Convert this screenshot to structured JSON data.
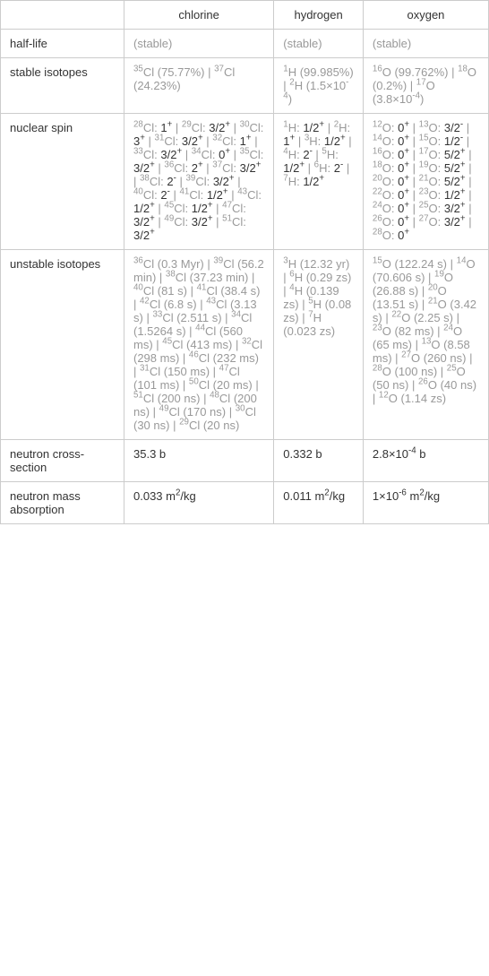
{
  "columns": [
    "chlorine",
    "hydrogen",
    "oxygen"
  ],
  "rows": {
    "halflife": {
      "label": "half-life",
      "cells": [
        "(stable)",
        "(stable)",
        "(stable)"
      ]
    },
    "stable_isotopes": {
      "label": "stable isotopes",
      "cells_html": [
        "<sup>35</sup>Cl (75.77%) | <sup>37</sup>Cl (24.23%)",
        "<sup>1</sup>H (99.985%) | <sup>2</sup>H (1.5×10<sup>-4</sup>)",
        "<sup>16</sup>O (99.762%) | <sup>18</sup>O (0.2%) | <sup>17</sup>O (3.8×10<sup>-4</sup>)"
      ]
    },
    "nuclear_spin": {
      "label": "nuclear spin",
      "cells_html": [
        "<sup>28</sup>Cl: <span class='black'>1<sup>+</sup></span> | <sup>29</sup>Cl: <span class='black'>3/2<sup>+</sup></span> | <sup>30</sup>Cl: <span class='black'>3<sup>+</sup></span> | <sup>31</sup>Cl: <span class='black'>3/2<sup>+</sup></span> | <sup>32</sup>Cl: <span class='black'>1<sup>+</sup></span> | <sup>33</sup>Cl: <span class='black'>3/2<sup>+</sup></span> | <sup>34</sup>Cl: <span class='black'>0<sup>+</sup></span> | <sup>35</sup>Cl: <span class='black'>3/2<sup>+</sup></span> | <sup>36</sup>Cl: <span class='black'>2<sup>+</sup></span> | <sup>37</sup>Cl: <span class='black'>3/2<sup>+</sup></span> | <sup>38</sup>Cl: <span class='black'>2<sup>-</sup></span> | <sup>39</sup>Cl: <span class='black'>3/2<sup>+</sup></span> | <sup>40</sup>Cl: <span class='black'>2<sup>-</sup></span> | <sup>41</sup>Cl: <span class='black'>1/2<sup>+</sup></span> | <sup>43</sup>Cl: <span class='black'>1/2<sup>+</sup></span> | <sup>45</sup>Cl: <span class='black'>1/2<sup>+</sup></span> | <sup>47</sup>Cl: <span class='black'>3/2<sup>+</sup></span> | <sup>49</sup>Cl: <span class='black'>3/2<sup>+</sup></span> | <sup>51</sup>Cl: <span class='black'>3/2<sup>+</sup></span>",
        "<sup>1</sup>H: <span class='black'>1/2<sup>+</sup></span> | <sup>2</sup>H: <span class='black'>1<sup>+</sup></span> | <sup>3</sup>H: <span class='black'>1/2<sup>+</sup></span> | <sup>4</sup>H: <span class='black'>2<sup>-</sup></span> | <sup>5</sup>H: <span class='black'>1/2<sup>+</sup></span> | <sup>6</sup>H: <span class='black'>2<sup>-</sup></span> | <sup>7</sup>H: <span class='black'>1/2<sup>+</sup></span>",
        "<sup>12</sup>O: <span class='black'>0<sup>+</sup></span> | <sup>13</sup>O: <span class='black'>3/2<sup>-</sup></span> | <sup>14</sup>O: <span class='black'>0<sup>+</sup></span> | <sup>15</sup>O: <span class='black'>1/2<sup>-</sup></span> | <sup>16</sup>O: <span class='black'>0<sup>+</sup></span> | <sup>17</sup>O: <span class='black'>5/2<sup>+</sup></span> | <sup>18</sup>O: <span class='black'>0<sup>+</sup></span> | <sup>19</sup>O: <span class='black'>5/2<sup>+</sup></span> | <sup>20</sup>O: <span class='black'>0<sup>+</sup></span> | <sup>21</sup>O: <span class='black'>5/2<sup>+</sup></span> | <sup>22</sup>O: <span class='black'>0<sup>+</sup></span> | <sup>23</sup>O: <span class='black'>1/2<sup>+</sup></span> | <sup>24</sup>O: <span class='black'>0<sup>+</sup></span> | <sup>25</sup>O: <span class='black'>3/2<sup>+</sup></span> | <sup>26</sup>O: <span class='black'>0<sup>+</sup></span> | <sup>27</sup>O: <span class='black'>3/2<sup>+</sup></span> | <sup>28</sup>O: <span class='black'>0<sup>+</sup></span>"
      ]
    },
    "unstable_isotopes": {
      "label": "unstable isotopes",
      "cells_html": [
        "<sup>36</sup>Cl <span class='gray'>(0.3 Myr)</span> | <sup>39</sup>Cl <span class='gray'>(56.2 min)</span> | <sup>38</sup>Cl <span class='gray'>(37.23 min)</span> | <sup>40</sup>Cl <span class='gray'>(81 s)</span> | <sup>41</sup>Cl <span class='gray'>(38.4 s)</span> | <sup>42</sup>Cl <span class='gray'>(6.8 s)</span> | <sup>43</sup>Cl <span class='gray'>(3.13 s)</span> | <sup>33</sup>Cl <span class='gray'>(2.511 s)</span> | <sup>34</sup>Cl <span class='gray'>(1.5264 s)</span> | <sup>44</sup>Cl <span class='gray'>(560 ms)</span> | <sup>45</sup>Cl <span class='gray'>(413 ms)</span> | <sup>32</sup>Cl <span class='gray'>(298 ms)</span> | <sup>46</sup>Cl <span class='gray'>(232 ms)</span> | <sup>31</sup>Cl <span class='gray'>(150 ms)</span> | <sup>47</sup>Cl <span class='gray'>(101 ms)</span> | <sup>50</sup>Cl <span class='gray'>(20 ms)</span> | <sup>51</sup>Cl <span class='gray'>(200 ns)</span> | <sup>48</sup>Cl <span class='gray'>(200 ns)</span> | <sup>49</sup>Cl <span class='gray'>(170 ns)</span> | <sup>30</sup>Cl <span class='gray'>(30 ns)</span> | <sup>29</sup>Cl <span class='gray'>(20 ns)</span>",
        "<sup>3</sup>H <span class='gray'>(12.32 yr)</span> | <sup>6</sup>H <span class='gray'>(0.29 zs)</span> | <sup>4</sup>H <span class='gray'>(0.139 zs)</span> | <sup>5</sup>H <span class='gray'>(0.08 zs)</span> | <sup>7</sup>H <span class='gray'>(0.023 zs)</span>",
        "<sup>15</sup>O <span class='gray'>(122.24 s)</span> | <sup>14</sup>O <span class='gray'>(70.606 s)</span> | <sup>19</sup>O <span class='gray'>(26.88 s)</span> | <sup>20</sup>O <span class='gray'>(13.51 s)</span> | <sup>21</sup>O <span class='gray'>(3.42 s)</span> | <sup>22</sup>O <span class='gray'>(2.25 s)</span> | <sup>23</sup>O <span class='gray'>(82 ms)</span> | <sup>24</sup>O <span class='gray'>(65 ms)</span> | <sup>13</sup>O <span class='gray'>(8.58 ms)</span> | <sup>27</sup>O <span class='gray'>(260 ns)</span> | <sup>28</sup>O <span class='gray'>(100 ns)</span> | <sup>25</sup>O <span class='gray'>(50 ns)</span> | <sup>26</sup>O <span class='gray'>(40 ns)</span> | <sup>12</sup>O <span class='gray'>(1.14 zs)</span>"
      ]
    },
    "neutron_cross": {
      "label": "neutron cross-section",
      "cells_html": [
        "35.3 b",
        "0.332 b",
        "2.8×10<sup>-4</sup> b"
      ]
    },
    "neutron_mass": {
      "label": "neutron mass absorption",
      "cells_html": [
        "0.033 m<sup>2</sup>/kg",
        "0.011 m<sup>2</sup>/kg",
        "1×10<sup>-6</sup> m<sup>2</sup>/kg"
      ]
    }
  }
}
